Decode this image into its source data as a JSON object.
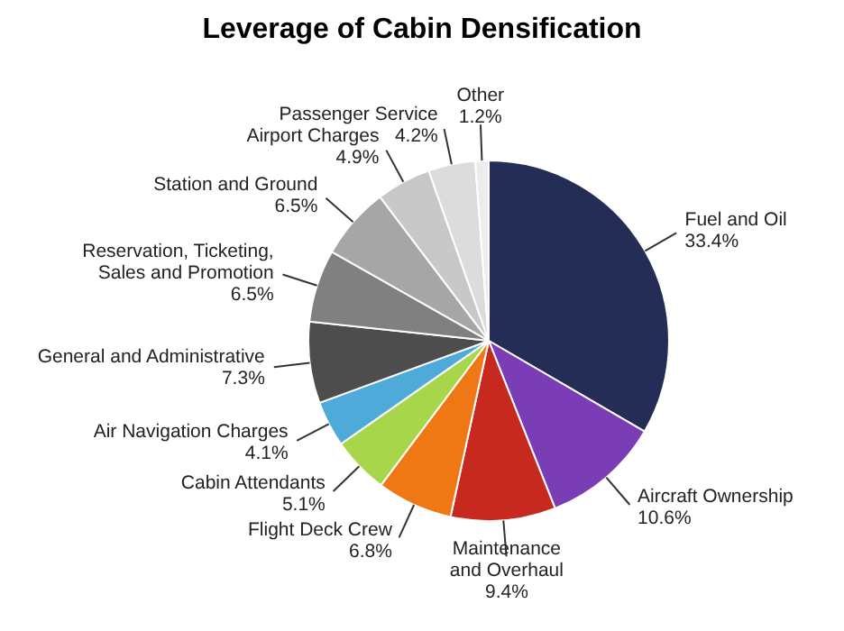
{
  "chart_data": {
    "type": "pie",
    "title": "Leverage of Cabin Densification",
    "categories": [
      "Fuel and Oil",
      "Aircraft Ownership",
      "Maintenance and Overhaul",
      "Flight Deck Crew",
      "Cabin Attendants",
      "Air Navigation Charges",
      "General and Administrative",
      "Reservation, Ticketing, Sales and Promotion",
      "Station and Ground",
      "Airport Charges",
      "Passenger Service",
      "Other"
    ],
    "values": [
      33.4,
      10.6,
      9.4,
      6.8,
      5.1,
      4.1,
      7.3,
      6.5,
      6.5,
      4.9,
      4.2,
      1.2
    ],
    "value_labels": [
      "33.4%",
      "10.6%",
      "9.4%",
      "6.8%",
      "5.1%",
      "4.1%",
      "7.3%",
      "6.5%",
      "6.5%",
      "4.9%",
      "4.2%",
      "1.2%"
    ],
    "colors": [
      "#232d55",
      "#7b3db5",
      "#c8291e",
      "#f07814",
      "#a8d64a",
      "#4eaad8",
      "#4d4d4d",
      "#808080",
      "#a6a6a6",
      "#c8c8c8",
      "#dcdcdc",
      "#ececec"
    ]
  }
}
